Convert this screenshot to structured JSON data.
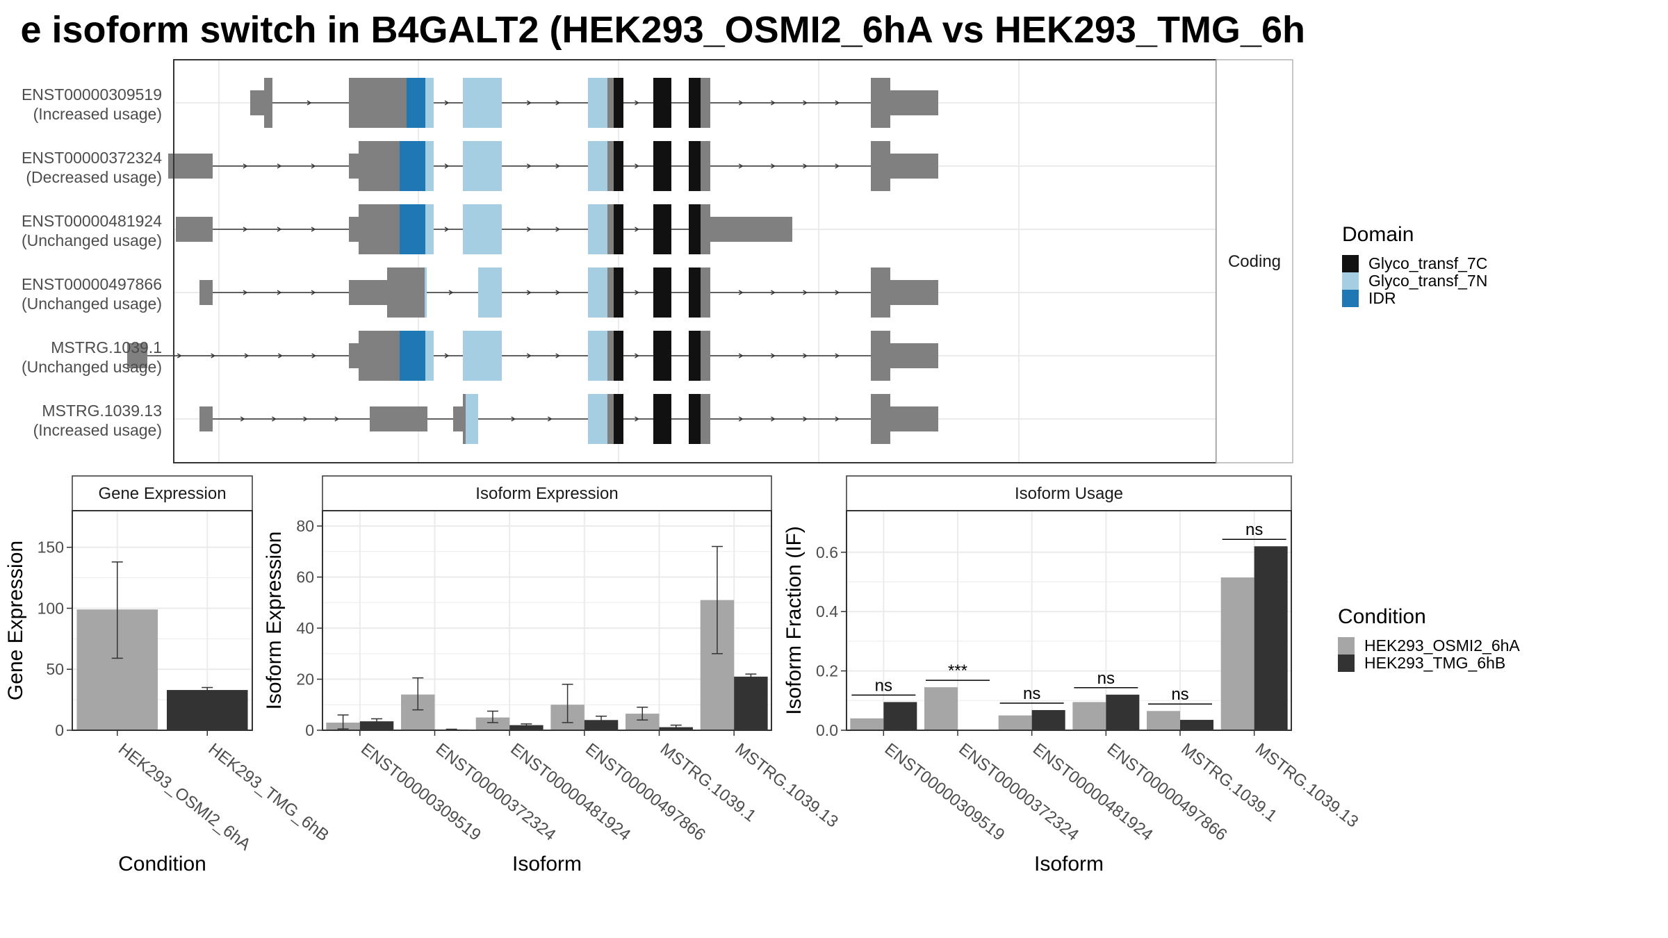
{
  "title": "e isoform switch in B4GALT2 (HEK293_OSMI2_6hA vs HEK293_TMG_6h",
  "colors": {
    "utr": "#808080",
    "Glyco_transf_7C": "#111111",
    "Glyco_transf_7N": "#A6CEE3",
    "IDR": "#1F78B4",
    "cond1": "#A6A6A6",
    "cond2": "#333333"
  },
  "chart_data": [
    {
      "type": "gene-structure",
      "facet_label": "Coding",
      "transcripts": [
        {
          "id": "ENST00000309519",
          "usage": "(Increased usage)",
          "segments": [
            {
              "s": 360,
              "e": 380,
              "k": "utr",
              "t": "thin"
            },
            {
              "s": 380,
              "e": 392,
              "k": "utr",
              "t": "thick"
            },
            {
              "s": 502,
              "e": 585,
              "k": "utr",
              "t": "thick"
            },
            {
              "s": 585,
              "e": 612,
              "k": "IDR",
              "t": "thick"
            },
            {
              "s": 612,
              "e": 624,
              "k": "Glyco_transf_7N",
              "t": "thick"
            },
            {
              "s": 666,
              "e": 722,
              "k": "Glyco_transf_7N",
              "t": "thick"
            },
            {
              "s": 846,
              "e": 874,
              "k": "Glyco_transf_7N",
              "t": "thick"
            },
            {
              "s": 874,
              "e": 883,
              "k": "utr",
              "t": "thick"
            },
            {
              "s": 883,
              "e": 897,
              "k": "Glyco_transf_7C",
              "t": "thick"
            },
            {
              "s": 940,
              "e": 966,
              "k": "Glyco_transf_7C",
              "t": "thick"
            },
            {
              "s": 991,
              "e": 1008,
              "k": "Glyco_transf_7C",
              "t": "thick"
            },
            {
              "s": 1008,
              "e": 1022,
              "k": "utr",
              "t": "thick"
            },
            {
              "s": 1253,
              "e": 1281,
              "k": "utr",
              "t": "thick"
            },
            {
              "s": 1281,
              "e": 1350,
              "k": "utr",
              "t": "thin"
            }
          ]
        },
        {
          "id": "ENST00000372324",
          "usage": "(Decreased usage)",
          "segments": [
            {
              "s": 242,
              "e": 306,
              "k": "utr",
              "t": "thin"
            },
            {
              "s": 502,
              "e": 516,
              "k": "utr",
              "t": "thin"
            },
            {
              "s": 516,
              "e": 575,
              "k": "utr",
              "t": "thick"
            },
            {
              "s": 575,
              "e": 612,
              "k": "IDR",
              "t": "thick"
            },
            {
              "s": 612,
              "e": 624,
              "k": "Glyco_transf_7N",
              "t": "thick"
            },
            {
              "s": 666,
              "e": 722,
              "k": "Glyco_transf_7N",
              "t": "thick"
            },
            {
              "s": 846,
              "e": 874,
              "k": "Glyco_transf_7N",
              "t": "thick"
            },
            {
              "s": 874,
              "e": 883,
              "k": "utr",
              "t": "thick"
            },
            {
              "s": 883,
              "e": 897,
              "k": "Glyco_transf_7C",
              "t": "thick"
            },
            {
              "s": 940,
              "e": 966,
              "k": "Glyco_transf_7C",
              "t": "thick"
            },
            {
              "s": 991,
              "e": 1008,
              "k": "Glyco_transf_7C",
              "t": "thick"
            },
            {
              "s": 1008,
              "e": 1022,
              "k": "utr",
              "t": "thick"
            },
            {
              "s": 1253,
              "e": 1281,
              "k": "utr",
              "t": "thick"
            },
            {
              "s": 1281,
              "e": 1350,
              "k": "utr",
              "t": "thin"
            }
          ]
        },
        {
          "id": "ENST00000481924",
          "usage": "(Unchanged usage)",
          "segments": [
            {
              "s": 253,
              "e": 306,
              "k": "utr",
              "t": "thin"
            },
            {
              "s": 502,
              "e": 516,
              "k": "utr",
              "t": "thin"
            },
            {
              "s": 516,
              "e": 575,
              "k": "utr",
              "t": "thick"
            },
            {
              "s": 575,
              "e": 612,
              "k": "IDR",
              "t": "thick"
            },
            {
              "s": 612,
              "e": 624,
              "k": "Glyco_transf_7N",
              "t": "thick"
            },
            {
              "s": 666,
              "e": 722,
              "k": "Glyco_transf_7N",
              "t": "thick"
            },
            {
              "s": 846,
              "e": 874,
              "k": "Glyco_transf_7N",
              "t": "thick"
            },
            {
              "s": 874,
              "e": 883,
              "k": "utr",
              "t": "thick"
            },
            {
              "s": 883,
              "e": 897,
              "k": "Glyco_transf_7C",
              "t": "thick"
            },
            {
              "s": 940,
              "e": 966,
              "k": "Glyco_transf_7C",
              "t": "thick"
            },
            {
              "s": 991,
              "e": 1008,
              "k": "Glyco_transf_7C",
              "t": "thick"
            },
            {
              "s": 1008,
              "e": 1022,
              "k": "utr",
              "t": "thick"
            },
            {
              "s": 1022,
              "e": 1140,
              "k": "utr",
              "t": "thin"
            }
          ]
        },
        {
          "id": "ENST00000497866",
          "usage": "(Unchanged usage)",
          "segments": [
            {
              "s": 287,
              "e": 306,
              "k": "utr",
              "t": "thin"
            },
            {
              "s": 502,
              "e": 557,
              "k": "utr",
              "t": "thin"
            },
            {
              "s": 557,
              "e": 611,
              "k": "utr",
              "t": "thick"
            },
            {
              "s": 611,
              "e": 614,
              "k": "Glyco_transf_7N",
              "t": "thick"
            },
            {
              "s": 688,
              "e": 722,
              "k": "Glyco_transf_7N",
              "t": "thick"
            },
            {
              "s": 846,
              "e": 874,
              "k": "Glyco_transf_7N",
              "t": "thick"
            },
            {
              "s": 874,
              "e": 883,
              "k": "utr",
              "t": "thick"
            },
            {
              "s": 883,
              "e": 897,
              "k": "Glyco_transf_7C",
              "t": "thick"
            },
            {
              "s": 940,
              "e": 966,
              "k": "Glyco_transf_7C",
              "t": "thick"
            },
            {
              "s": 991,
              "e": 1008,
              "k": "Glyco_transf_7C",
              "t": "thick"
            },
            {
              "s": 1008,
              "e": 1022,
              "k": "utr",
              "t": "thick"
            },
            {
              "s": 1253,
              "e": 1281,
              "k": "utr",
              "t": "thick"
            },
            {
              "s": 1281,
              "e": 1350,
              "k": "utr",
              "t": "thin"
            }
          ]
        },
        {
          "id": "MSTRG.1039.1",
          "usage": "(Unchanged usage)",
          "segments": [
            {
              "s": 183,
              "e": 212,
              "k": "utr",
              "t": "thin"
            },
            {
              "s": 502,
              "e": 516,
              "k": "utr",
              "t": "thin"
            },
            {
              "s": 516,
              "e": 575,
              "k": "utr",
              "t": "thick"
            },
            {
              "s": 575,
              "e": 612,
              "k": "IDR",
              "t": "thick"
            },
            {
              "s": 612,
              "e": 624,
              "k": "Glyco_transf_7N",
              "t": "thick"
            },
            {
              "s": 666,
              "e": 722,
              "k": "Glyco_transf_7N",
              "t": "thick"
            },
            {
              "s": 846,
              "e": 874,
              "k": "Glyco_transf_7N",
              "t": "thick"
            },
            {
              "s": 874,
              "e": 883,
              "k": "utr",
              "t": "thick"
            },
            {
              "s": 883,
              "e": 897,
              "k": "Glyco_transf_7C",
              "t": "thick"
            },
            {
              "s": 940,
              "e": 966,
              "k": "Glyco_transf_7C",
              "t": "thick"
            },
            {
              "s": 991,
              "e": 1008,
              "k": "Glyco_transf_7C",
              "t": "thick"
            },
            {
              "s": 1008,
              "e": 1022,
              "k": "utr",
              "t": "thick"
            },
            {
              "s": 1253,
              "e": 1281,
              "k": "utr",
              "t": "thick"
            },
            {
              "s": 1281,
              "e": 1350,
              "k": "utr",
              "t": "thin"
            }
          ]
        },
        {
          "id": "MSTRG.1039.13",
          "usage": "(Increased usage)",
          "segments": [
            {
              "s": 287,
              "e": 306,
              "k": "utr",
              "t": "thin"
            },
            {
              "s": 532,
              "e": 615,
              "k": "utr",
              "t": "thin"
            },
            {
              "s": 652,
              "e": 666,
              "k": "utr",
              "t": "thin"
            },
            {
              "s": 666,
              "e": 670,
              "k": "utr",
              "t": "thick"
            },
            {
              "s": 670,
              "e": 688,
              "k": "Glyco_transf_7N",
              "t": "thick"
            },
            {
              "s": 846,
              "e": 874,
              "k": "Glyco_transf_7N",
              "t": "thick"
            },
            {
              "s": 874,
              "e": 883,
              "k": "utr",
              "t": "thick"
            },
            {
              "s": 883,
              "e": 897,
              "k": "Glyco_transf_7C",
              "t": "thick"
            },
            {
              "s": 940,
              "e": 966,
              "k": "Glyco_transf_7C",
              "t": "thick"
            },
            {
              "s": 991,
              "e": 1008,
              "k": "Glyco_transf_7C",
              "t": "thick"
            },
            {
              "s": 1008,
              "e": 1022,
              "k": "utr",
              "t": "thick"
            },
            {
              "s": 1253,
              "e": 1281,
              "k": "utr",
              "t": "thick"
            },
            {
              "s": 1281,
              "e": 1350,
              "k": "utr",
              "t": "thin"
            }
          ]
        }
      ],
      "legend": {
        "title": "Domain",
        "entries": [
          "Glyco_transf_7C",
          "Glyco_transf_7N",
          "IDR"
        ]
      }
    },
    {
      "type": "bar",
      "facet_title": "Gene Expression",
      "xlabel": "Condition",
      "ylabel": "Gene Expression",
      "categories": [
        "HEK293_OSMI2_6hA",
        "HEK293_TMG_6hB"
      ],
      "values": [
        99,
        33
      ],
      "errors": [
        [
          59,
          138
        ],
        [
          31,
          35
        ]
      ],
      "ylim": [
        0,
        180
      ],
      "yticks": [
        0,
        50,
        100,
        150
      ]
    },
    {
      "type": "bar",
      "facet_title": "Isoform Expression",
      "xlabel": "Isoform",
      "ylabel": "Isoform Expression",
      "categories": [
        "ENST00000309519",
        "ENST00000372324",
        "ENST00000481924",
        "ENST00000497866",
        "MSTRG.1039.1",
        "MSTRG.1039.13"
      ],
      "series": [
        {
          "name": "HEK293_OSMI2_6hA",
          "values": [
            3,
            14,
            5,
            10,
            6.5,
            51
          ],
          "errors": [
            [
              0.5,
              6
            ],
            [
              8,
              20.5
            ],
            [
              3,
              7.5
            ],
            [
              3,
              18
            ],
            [
              4,
              9
            ],
            [
              30,
              72
            ]
          ]
        },
        {
          "name": "HEK293_TMG_6hB",
          "values": [
            3.5,
            0.3,
            2,
            4,
            1.2,
            21
          ],
          "errors": [
            [
              2.5,
              4.5
            ],
            [
              0.2,
              0.4
            ],
            [
              1.5,
              2.5
            ],
            [
              2.5,
              5.5
            ],
            [
              0.5,
              2
            ],
            [
              20,
              22
            ]
          ]
        }
      ],
      "ylim": [
        0,
        86
      ],
      "yticks": [
        0,
        20,
        40,
        60,
        80
      ]
    },
    {
      "type": "bar",
      "facet_title": "Isoform Usage",
      "xlabel": "Isoform",
      "ylabel": "Isoform Fraction (IF)",
      "categories": [
        "ENST00000309519",
        "ENST00000372324",
        "ENST00000481924",
        "ENST00000497866",
        "MSTRG.1039.1",
        "MSTRG.1039.13"
      ],
      "series": [
        {
          "name": "HEK293_OSMI2_6hA",
          "values": [
            0.04,
            0.145,
            0.05,
            0.095,
            0.065,
            0.515
          ]
        },
        {
          "name": "HEK293_TMG_6hB",
          "values": [
            0.095,
            0.002,
            0.068,
            0.12,
            0.035,
            0.62
          ]
        }
      ],
      "significance": [
        "ns",
        "***",
        "ns",
        "ns",
        "ns",
        "ns"
      ],
      "ylim": [
        0,
        0.74
      ],
      "yticks": [
        0.0,
        0.2,
        0.4,
        0.6
      ],
      "legend": {
        "title": "Condition",
        "entries": [
          "HEK293_OSMI2_6hA",
          "HEK293_TMG_6hB"
        ]
      }
    }
  ]
}
